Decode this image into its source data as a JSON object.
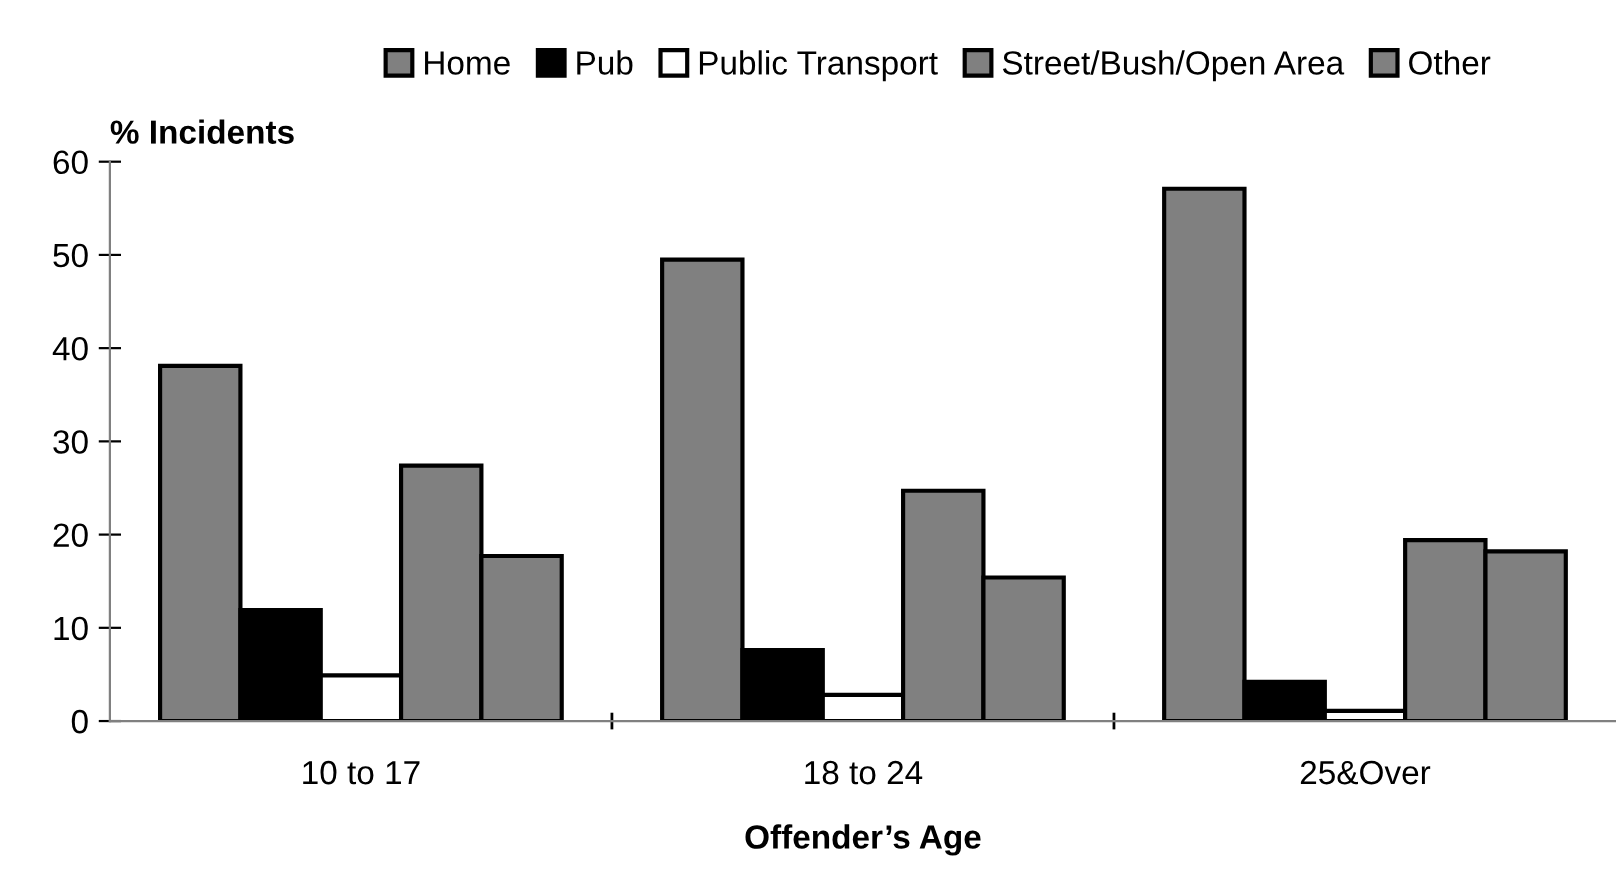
{
  "chart_data": {
    "type": "bar",
    "categories": [
      "10 to 17",
      "18 to 24",
      "25&Over"
    ],
    "series": [
      {
        "name": "Home",
        "color": "#808080",
        "values": [
          38.1,
          49.5,
          57.1
        ]
      },
      {
        "name": "Pub",
        "color": "#000000",
        "values": [
          11.9,
          7.6,
          4.2
        ]
      },
      {
        "name": "Public Transport",
        "color": "#ffffff",
        "values": [
          4.9,
          2.8,
          1.1
        ]
      },
      {
        "name": "Street/Bush/Open Area",
        "color": "#808080",
        "values": [
          27.4,
          24.7,
          19.4
        ]
      },
      {
        "name": "Other",
        "color": "#808080",
        "values": [
          17.7,
          15.4,
          18.2
        ]
      }
    ],
    "xlabel": "Offender’s Age",
    "ylabel": "% Incidents",
    "ylim": [
      0,
      60
    ],
    "yticks": [
      0,
      10,
      20,
      30,
      40,
      50,
      60
    ],
    "grid": false,
    "legend": "top"
  }
}
